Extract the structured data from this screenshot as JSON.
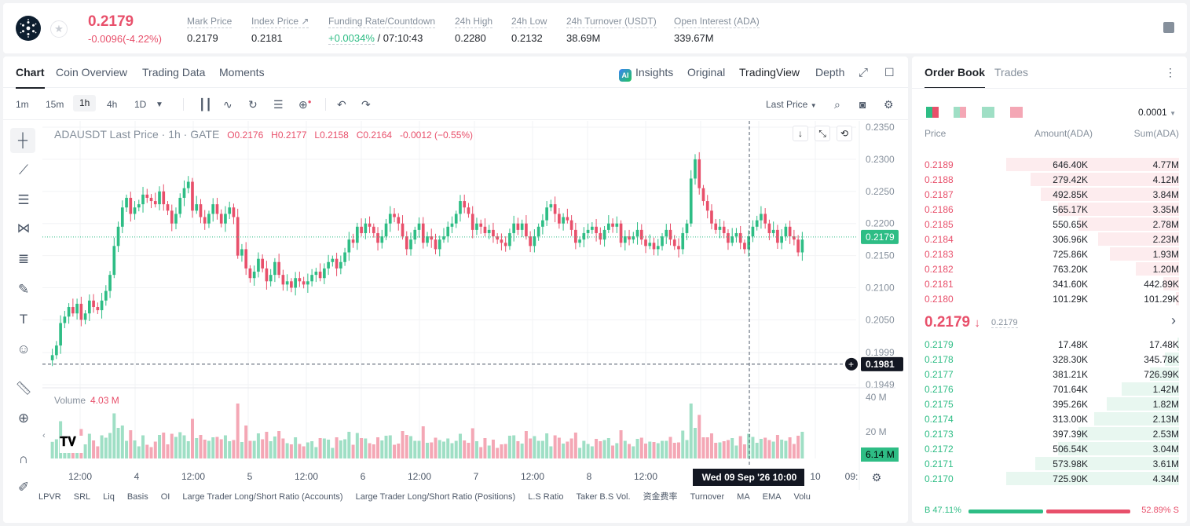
{
  "header": {
    "price": "0.2179",
    "change": "-0.0096(-4.22%)",
    "stats": [
      {
        "label": "Mark Price",
        "value": "0.2179"
      },
      {
        "label": "Index Price ↗",
        "value": "0.2181"
      },
      {
        "label": "Funding Rate/Countdown",
        "value": "+0.0034%",
        "value2": " / 07:10:43"
      },
      {
        "label": "24h High",
        "value": "0.2280"
      },
      {
        "label": "24h Low",
        "value": "0.2132"
      },
      {
        "label": "24h Turnover (USDT)",
        "value": "38.69M"
      },
      {
        "label": "Open Interest (ADA)",
        "value": "339.67M"
      }
    ]
  },
  "chart_tabs": [
    "Chart",
    "Coin Overview",
    "Trading Data",
    "Moments"
  ],
  "view_tabs": {
    "insights": "Insights",
    "original": "Original",
    "tradingview": "TradingView",
    "depth": "Depth"
  },
  "intervals": [
    "1m",
    "15m",
    "1h",
    "4h",
    "1D"
  ],
  "price_type": "Last Price",
  "legend": {
    "symbol": "ADAUSDT Last Price · 1h · GATE",
    "o": "O0.2176",
    "h": "H0.2177",
    "l": "L0.2158",
    "c": "C0.2164",
    "chg": "-0.0012 (−0.55%)"
  },
  "volume_legend": {
    "label": "Volume",
    "value": "4.03 M"
  },
  "chart_data": {
    "type": "candlestick",
    "y_ticks": [
      "0.2350",
      "0.2300",
      "0.2250",
      "0.2200",
      "0.2150",
      "0.2100",
      "0.2050",
      "0.1999",
      "0.1949"
    ],
    "ylim": [
      0.1949,
      0.235
    ],
    "last_price": "0.2179",
    "cursor_price": "0.1981",
    "vol_ticks": [
      "40 M",
      "20 M"
    ],
    "vol_last": "6.14 M",
    "x_ticks": [
      "12:00",
      "4",
      "12:00",
      "5",
      "12:00",
      "6",
      "12:00",
      "7",
      "12:00",
      "8",
      "12:00",
      "10",
      "09:"
    ],
    "crosshair_label": "Wed 09 Sep '26    10:00",
    "closes": [
      0.1995,
      0.201,
      0.2045,
      0.2055,
      0.207,
      0.206,
      0.2075,
      0.205,
      0.206,
      0.208,
      0.207,
      0.2065,
      0.208,
      0.2095,
      0.212,
      0.2165,
      0.2195,
      0.2225,
      0.224,
      0.2215,
      0.2225,
      0.223,
      0.2245,
      0.224,
      0.2235,
      0.223,
      0.225,
      0.223,
      0.222,
      0.22,
      0.2215,
      0.224,
      0.2255,
      0.2265,
      0.222,
      0.223,
      0.221,
      0.22,
      0.2215,
      0.223,
      0.2215,
      0.22,
      0.2215,
      0.2225,
      0.221,
      0.215,
      0.216,
      0.213,
      0.2115,
      0.2125,
      0.2145,
      0.213,
      0.211,
      0.212,
      0.214,
      0.212,
      0.2105,
      0.211,
      0.21,
      0.2115,
      0.211,
      0.2105,
      0.211,
      0.212,
      0.2125,
      0.2115,
      0.213,
      0.214,
      0.2145,
      0.213,
      0.214,
      0.2155,
      0.2175,
      0.217,
      0.2195,
      0.2185,
      0.22,
      0.2195,
      0.2185,
      0.217,
      0.218,
      0.22,
      0.2215,
      0.221,
      0.22,
      0.218,
      0.216,
      0.2175,
      0.219,
      0.22,
      0.217,
      0.218,
      0.2175,
      0.216,
      0.2175,
      0.218,
      0.2195,
      0.22,
      0.2215,
      0.2235,
      0.2225,
      0.2215,
      0.219,
      0.22,
      0.2195,
      0.2185,
      0.219,
      0.218,
      0.2175,
      0.217,
      0.2165,
      0.2185,
      0.22,
      0.219,
      0.22,
      0.218,
      0.2165,
      0.218,
      0.2195,
      0.2205,
      0.2225,
      0.223,
      0.2215,
      0.22,
      0.221,
      0.2205,
      0.219,
      0.217,
      0.2175,
      0.2185,
      0.219,
      0.2195,
      0.2185,
      0.2175,
      0.219,
      0.22,
      0.2195,
      0.22,
      0.217,
      0.218,
      0.2175,
      0.218,
      0.219,
      0.2175,
      0.2165,
      0.217,
      0.216,
      0.2165,
      0.218,
      0.219,
      0.2175,
      0.2165,
      0.216,
      0.2185,
      0.22,
      0.227,
      0.23,
      0.2255,
      0.2235,
      0.222,
      0.22,
      0.219,
      0.2195,
      0.2185,
      0.217,
      0.218,
      0.2185,
      0.217,
      0.216,
      0.218,
      0.2195,
      0.2205,
      0.2215,
      0.22,
      0.2185,
      0.219,
      0.217,
      0.218,
      0.2195,
      0.218,
      0.2175,
      0.2155,
      0.2175
    ]
  },
  "indicators": [
    "LPVR",
    "SRL",
    "Liq",
    "Basis",
    "OI",
    "Large Trader Long/Short Ratio (Accounts)",
    "Large Trader Long/Short Ratio (Positions)",
    "L.S Ratio",
    "Taker B.S Vol.",
    "资金费率",
    "Turnover",
    "MA",
    "EMA",
    "Volu"
  ],
  "book": {
    "tabs": [
      "Order Book",
      "Trades"
    ],
    "precision": "0.0001",
    "headers": {
      "price": "Price",
      "amount": "Amount(ADA)",
      "sum": "Sum(ADA)"
    },
    "asks": [
      {
        "p": "0.2189",
        "a": "646.40K",
        "s": "4.77M",
        "d": 1.0
      },
      {
        "p": "0.2188",
        "a": "279.42K",
        "s": "4.12M",
        "d": 0.86
      },
      {
        "p": "0.2187",
        "a": "492.85K",
        "s": "3.84M",
        "d": 0.8
      },
      {
        "p": "0.2186",
        "a": "565.17K",
        "s": "3.35M",
        "d": 0.7
      },
      {
        "p": "0.2185",
        "a": "550.65K",
        "s": "2.78M",
        "d": 0.58
      },
      {
        "p": "0.2184",
        "a": "306.96K",
        "s": "2.23M",
        "d": 0.47
      },
      {
        "p": "0.2183",
        "a": "725.86K",
        "s": "1.93M",
        "d": 0.4
      },
      {
        "p": "0.2182",
        "a": "763.20K",
        "s": "1.20M",
        "d": 0.25
      },
      {
        "p": "0.2181",
        "a": "341.60K",
        "s": "442.89K",
        "d": 0.09
      },
      {
        "p": "0.2180",
        "a": "101.29K",
        "s": "101.29K",
        "d": 0.02
      }
    ],
    "mid": {
      "price": "0.2179",
      "arrow": "↓",
      "mark": "0.2179",
      "more": "›"
    },
    "bids": [
      {
        "p": "0.2179",
        "a": "17.48K",
        "s": "17.48K",
        "d": 0.01
      },
      {
        "p": "0.2178",
        "a": "328.30K",
        "s": "345.78K",
        "d": 0.08
      },
      {
        "p": "0.2177",
        "a": "381.21K",
        "s": "726.99K",
        "d": 0.17
      },
      {
        "p": "0.2176",
        "a": "701.64K",
        "s": "1.42M",
        "d": 0.33
      },
      {
        "p": "0.2175",
        "a": "395.26K",
        "s": "1.82M",
        "d": 0.42
      },
      {
        "p": "0.2174",
        "a": "313.00K",
        "s": "2.13M",
        "d": 0.49
      },
      {
        "p": "0.2173",
        "a": "397.39K",
        "s": "2.53M",
        "d": 0.58
      },
      {
        "p": "0.2172",
        "a": "506.54K",
        "s": "3.04M",
        "d": 0.7
      },
      {
        "p": "0.2171",
        "a": "573.98K",
        "s": "3.61M",
        "d": 0.83
      },
      {
        "p": "0.2170",
        "a": "725.90K",
        "s": "4.34M",
        "d": 1.0
      }
    ],
    "ratio": {
      "buy": "B 47.11%",
      "sell": "52.89% S",
      "buy_pct": 47.11
    }
  },
  "colors": {
    "up": "#2ebd85",
    "down": "#e8506b",
    "up_vol": "#9fdfc5",
    "down_vol": "#f4a7b5"
  }
}
